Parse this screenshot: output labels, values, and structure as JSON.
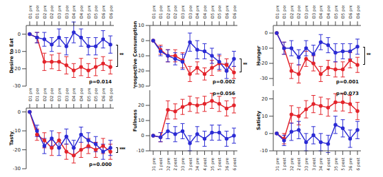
{
  "chart_data": [
    {
      "type": "line",
      "title": "Desire to Eat",
      "categories": [
        "D1 pre",
        "D1 post",
        "D2 pre",
        "D2 post",
        "D3 pre",
        "D3 post",
        "D4 pre",
        "D4 post",
        "D5 pre",
        "D5 post",
        "D6 pre",
        "D6 post"
      ],
      "ylim": [
        -30,
        5
      ],
      "yticks": [
        -30,
        -20,
        -10,
        0
      ],
      "p_value": "p=0.014",
      "significance": "**",
      "series": [
        {
          "color": "#e3242b",
          "marker": "circle",
          "values": [
            0,
            -2,
            -16,
            -16,
            -16,
            -18,
            -21,
            -19,
            -21,
            -19,
            -17,
            -19
          ],
          "errors": [
            0,
            3,
            5,
            4,
            5,
            5,
            4,
            5,
            4,
            5,
            4,
            4
          ]
        },
        {
          "color": "#2b2bd4",
          "marker": "circle",
          "values": [
            0,
            -2,
            -3,
            -6,
            -2,
            -7,
            1,
            -2,
            -7,
            -7,
            -3,
            -6
          ],
          "errors": [
            0,
            3,
            4,
            4,
            5,
            5,
            6,
            5,
            5,
            5,
            5,
            5
          ]
        }
      ]
    },
    {
      "type": "line",
      "title": "Prospective Consumption",
      "categories": [
        "D1 pre",
        "D1 post",
        "D2 pre",
        "D2 post",
        "D3 pre",
        "D3 post",
        "D4 pre",
        "D4 post",
        "D5 pre",
        "D5 post",
        "D6 pre",
        "D6 post"
      ],
      "ylim": [
        -30,
        10
      ],
      "yticks": [
        -30,
        -20,
        -10,
        0,
        10
      ],
      "p_value": "p=0.002",
      "significance": "**",
      "series": [
        {
          "color": "#e3242b",
          "marker": "circle",
          "values": [
            0,
            -6,
            -10,
            -10,
            -13,
            -22,
            -18,
            -22,
            -18,
            -15,
            -16,
            -21
          ],
          "errors": [
            0,
            3,
            4,
            4,
            5,
            5,
            4,
            4,
            5,
            5,
            4,
            4
          ]
        },
        {
          "color": "#2b2bd4",
          "marker": "circle",
          "values": [
            0,
            -7,
            -10,
            -12,
            -14,
            -1,
            -6,
            -7,
            -10,
            -14,
            -20,
            -12
          ],
          "errors": [
            0,
            3,
            4,
            4,
            5,
            6,
            6,
            5,
            5,
            5,
            5,
            5
          ]
        }
      ]
    },
    {
      "type": "line",
      "title": "Hunger",
      "categories": [
        "D1 pre",
        "D1 post",
        "D2 pre",
        "D2 post",
        "D3 pre",
        "D3 post",
        "D4 pre",
        "D4 post",
        "D5 pre",
        "D5 post",
        "D6 pre",
        "D6 post"
      ],
      "ylim": [
        -35,
        5
      ],
      "yticks": [
        -30,
        -20,
        -10,
        0
      ],
      "p_value": "p=0.001",
      "significance": "**",
      "series": [
        {
          "color": "#e3242b",
          "marker": "circle",
          "values": [
            0,
            -10,
            -25,
            -27,
            -17,
            -20,
            -27,
            -23,
            -24,
            -24,
            -18,
            -21
          ],
          "errors": [
            0,
            4,
            5,
            6,
            5,
            5,
            5,
            5,
            5,
            5,
            5,
            5
          ]
        },
        {
          "color": "#2b2bd4",
          "marker": "circle",
          "values": [
            0,
            -10,
            -10,
            -16,
            -10,
            -14,
            -6,
            -8,
            -13,
            -12,
            -12,
            -9
          ],
          "errors": [
            0,
            4,
            5,
            5,
            5,
            6,
            5,
            5,
            6,
            5,
            5,
            5
          ]
        }
      ]
    },
    {
      "type": "line",
      "title": "Tasty",
      "categories": [
        "D1 pre",
        "D1 post",
        "D2 pre",
        "D2 post",
        "D3 pre",
        "D3 post",
        "D4 pre",
        "D4 post",
        "D5 pre",
        "D5 post",
        "D6 pre",
        "D6 post"
      ],
      "ylim": [
        -30,
        2
      ],
      "yticks": [
        -30,
        -20,
        -10,
        0
      ],
      "p_value": "p=0.000",
      "significance": "***",
      "series": [
        {
          "color": "#e3242b",
          "marker": "circle",
          "values": [
            0,
            -12,
            -15,
            -19,
            -15,
            -21,
            -23,
            -20,
            -18,
            -20,
            -18,
            -21
          ],
          "errors": [
            0,
            3,
            4,
            4,
            4,
            4,
            4,
            4,
            4,
            4,
            4,
            4
          ]
        },
        {
          "color": "#2b2bd4",
          "marker": "circle",
          "values": [
            0,
            -10,
            -18,
            -14,
            -19,
            -13,
            -19,
            -12,
            -15,
            -17,
            -21,
            -19
          ],
          "errors": [
            0,
            3,
            4,
            4,
            4,
            4,
            4,
            4,
            4,
            4,
            4,
            4
          ]
        }
      ]
    },
    {
      "type": "line",
      "title": "Fullness",
      "categories": [
        "D1 pre",
        "D1 post",
        "D2 pre",
        "D2 post",
        "D3 pre",
        "D3 post",
        "D4 pre",
        "D4 post",
        "D5 pre",
        "D5 post",
        "D6 pre",
        "D6 post"
      ],
      "ylim": [
        -10,
        30
      ],
      "yticks": [
        -10,
        0,
        10,
        20
      ],
      "p_value": "p=0.056",
      "series": [
        {
          "color": "#e3242b",
          "marker": "circle",
          "values": [
            0,
            -1,
            17,
            16,
            19,
            21,
            20,
            21,
            23,
            21,
            18,
            20
          ],
          "errors": [
            0,
            3,
            6,
            5,
            5,
            5,
            5,
            5,
            5,
            5,
            5,
            5
          ]
        },
        {
          "color": "#2b2bd4",
          "marker": "circle",
          "values": [
            0,
            -1,
            3,
            1,
            3,
            -5,
            1,
            -2,
            2,
            2,
            -2,
            0
          ],
          "errors": [
            0,
            3,
            5,
            5,
            5,
            5,
            5,
            5,
            5,
            5,
            5,
            5
          ]
        }
      ]
    },
    {
      "type": "line",
      "title": "Satiety",
      "categories": [
        "D1 pre",
        "D1 post",
        "D2 pre",
        "D2 post",
        "D3 pre",
        "D3 post",
        "D4 pre",
        "D4 post",
        "D5 pre",
        "D5 post",
        "D6 pre",
        "D6 post"
      ],
      "ylim": [
        -10,
        25
      ],
      "yticks": [
        -10,
        0,
        10,
        20
      ],
      "p_value": "p=0.073",
      "series": [
        {
          "color": "#e3242b",
          "marker": "circle",
          "values": [
            0,
            -3,
            11,
            10,
            14,
            17,
            16,
            15,
            18,
            18,
            17,
            13
          ],
          "errors": [
            0,
            3,
            5,
            5,
            5,
            5,
            5,
            5,
            5,
            5,
            5,
            5
          ]
        },
        {
          "color": "#2b2bd4",
          "marker": "circle",
          "values": [
            0,
            -4,
            1,
            2,
            -5,
            -1,
            -5,
            -6,
            5,
            3,
            -3,
            2
          ],
          "errors": [
            0,
            3,
            5,
            5,
            5,
            5,
            5,
            5,
            5,
            5,
            5,
            5
          ]
        }
      ]
    }
  ]
}
